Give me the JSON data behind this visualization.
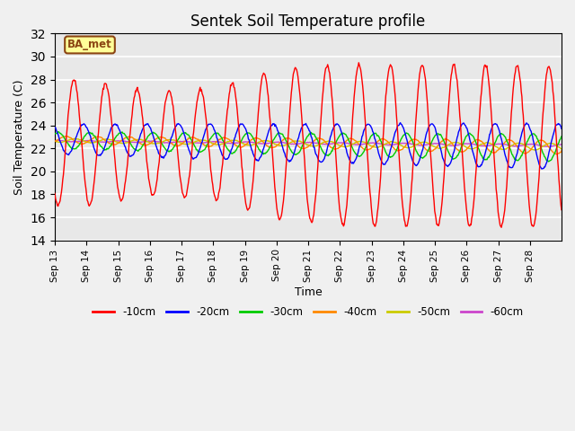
{
  "title": "Sentek Soil Temperature profile",
  "xlabel": "Time",
  "ylabel": "Soil Temperature (C)",
  "ylim": [
    14,
    32
  ],
  "yticks": [
    14,
    16,
    18,
    20,
    22,
    24,
    26,
    28,
    30,
    32
  ],
  "annotation_text": "BA_met",
  "bg_color": "#e8e8e8",
  "colors": {
    "-10cm": "#ff0000",
    "-20cm": "#0000ff",
    "-30cm": "#00cc00",
    "-40cm": "#ff8800",
    "-50cm": "#cccc00",
    "-60cm": "#cc44cc"
  },
  "legend_labels": [
    "-10cm",
    "-20cm",
    "-30cm",
    "-40cm",
    "-50cm",
    "-60cm"
  ],
  "x_tick_labels": [
    "Sep 13",
    "Sep 14",
    "Sep 15",
    "Sep 16",
    "Sep 17",
    "Sep 18",
    "Sep 19",
    "Sep 20",
    "Sep 21",
    "Sep 22",
    "Sep 23",
    "Sep 24",
    "Sep 25",
    "Sep 26",
    "Sep 27",
    "Sep 28"
  ],
  "n_days": 16,
  "samples_per_day": 48
}
